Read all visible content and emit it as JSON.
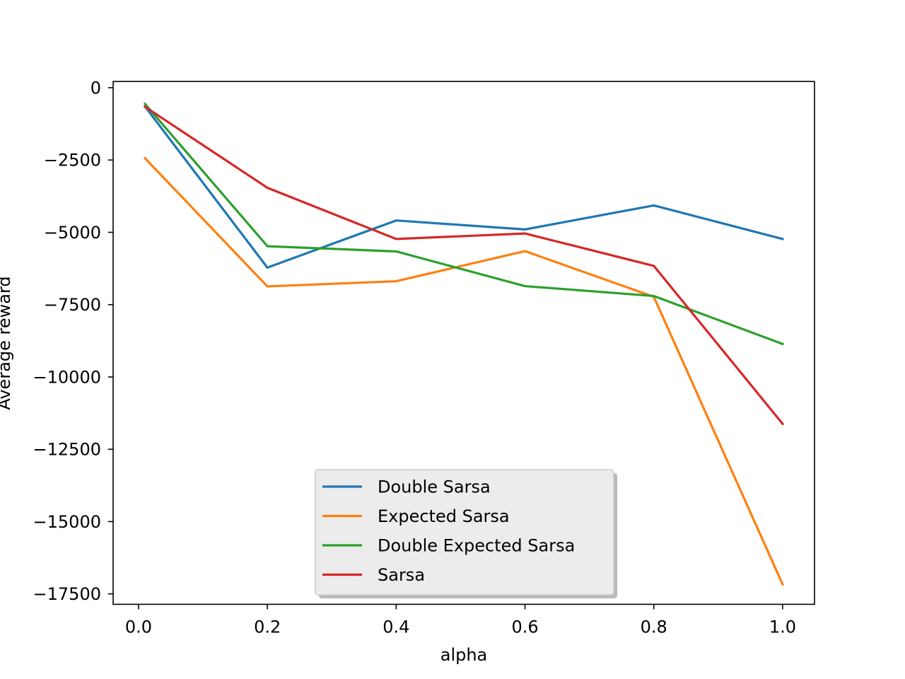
{
  "chart_data": {
    "type": "line",
    "xlabel": "alpha",
    "ylabel": "Average reward",
    "xlim": [
      -0.0395,
      1.0495
    ],
    "ylim": [
      -17860,
      215
    ],
    "xticks": [
      0.0,
      0.2,
      0.4,
      0.6,
      0.8,
      1.0
    ],
    "xtick_labels": [
      "0.0",
      "0.2",
      "0.4",
      "0.6",
      "0.8",
      "1.0"
    ],
    "yticks": [
      0,
      -2500,
      -5000,
      -7500,
      -10000,
      -12500,
      -15000,
      -17500
    ],
    "ytick_labels": [
      "0",
      "−2500",
      "−5000",
      "−7500",
      "−10000",
      "−12500",
      "−15000",
      "−17500"
    ],
    "grid": false,
    "legend_position": "lower center",
    "x": [
      0.01,
      0.2,
      0.4,
      0.6,
      0.8,
      1.0
    ],
    "series": [
      {
        "name": "Double Sarsa",
        "color": "#1f77b4",
        "values": [
          -650,
          -6220,
          -4590,
          -4900,
          -4070,
          -5230
        ]
      },
      {
        "name": "Expected Sarsa",
        "color": "#ff7f0e",
        "values": [
          -2440,
          -6870,
          -6690,
          -5650,
          -7230,
          -17170
        ]
      },
      {
        "name": "Double Expected Sarsa",
        "color": "#2ca02c",
        "values": [
          -560,
          -5480,
          -5660,
          -6860,
          -7200,
          -8860
        ]
      },
      {
        "name": "Sarsa",
        "color": "#d62728",
        "values": [
          -660,
          -3460,
          -5230,
          -5040,
          -6160,
          -11620
        ]
      }
    ]
  }
}
